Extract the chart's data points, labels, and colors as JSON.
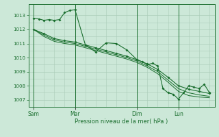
{
  "bg_color": "#cce8d8",
  "grid_color": "#aaccb8",
  "line_color": "#1a6e2e",
  "title": "Pression niveau de la mer( hPa )",
  "ylim": [
    1006.5,
    1013.8
  ],
  "yticks": [
    1007,
    1008,
    1009,
    1010,
    1011,
    1012,
    1013
  ],
  "day_labels": [
    "Sam",
    "Mar",
    "Dim",
    "Lun"
  ],
  "day_positions": [
    0,
    4,
    10,
    14
  ],
  "series1_x": [
    0,
    0.5,
    1,
    1.5,
    2,
    2.5,
    3,
    3.5,
    4,
    5,
    6,
    7,
    8,
    9,
    10,
    10.5,
    11,
    11.5,
    12,
    12.5,
    13,
    13.5,
    14,
    14.5,
    15,
    15.5,
    16,
    16.5,
    17
  ],
  "series1_y": [
    1012.8,
    1012.75,
    1012.65,
    1012.7,
    1012.65,
    1012.7,
    1013.2,
    1013.35,
    1013.4,
    1010.9,
    1010.4,
    1011.05,
    1011.0,
    1010.55,
    1009.85,
    1009.7,
    1009.5,
    1009.6,
    1009.4,
    1007.8,
    1007.5,
    1007.4,
    1007.05,
    1007.5,
    1008.0,
    1007.9,
    1007.8,
    1008.1,
    1007.5
  ],
  "series2_x": [
    0,
    1,
    2,
    3,
    4,
    5,
    6,
    7,
    8,
    9,
    10,
    11,
    12,
    13,
    14,
    15,
    16,
    17
  ],
  "series2_y": [
    1012.0,
    1011.7,
    1011.35,
    1011.2,
    1011.1,
    1010.9,
    1010.7,
    1010.5,
    1010.3,
    1010.1,
    1009.85,
    1009.55,
    1009.15,
    1008.6,
    1008.0,
    1007.75,
    1007.6,
    1007.45
  ],
  "series3_x": [
    0,
    1,
    2,
    3,
    4,
    5,
    6,
    7,
    8,
    9,
    10,
    11,
    12,
    13,
    14,
    15,
    16,
    17
  ],
  "series3_y": [
    1012.0,
    1011.6,
    1011.25,
    1011.1,
    1011.0,
    1010.8,
    1010.6,
    1010.4,
    1010.2,
    1010.0,
    1009.75,
    1009.4,
    1009.0,
    1008.4,
    1007.8,
    1007.5,
    1007.35,
    1007.25
  ],
  "series4_x": [
    0,
    1,
    2,
    3,
    4,
    5,
    6,
    7,
    8,
    9,
    10,
    11,
    12,
    13,
    14,
    15,
    16,
    17
  ],
  "series4_y": [
    1012.0,
    1011.5,
    1011.15,
    1011.0,
    1010.9,
    1010.7,
    1010.5,
    1010.3,
    1010.1,
    1009.9,
    1009.65,
    1009.3,
    1008.85,
    1008.25,
    1007.6,
    1007.3,
    1007.2,
    1007.15
  ]
}
